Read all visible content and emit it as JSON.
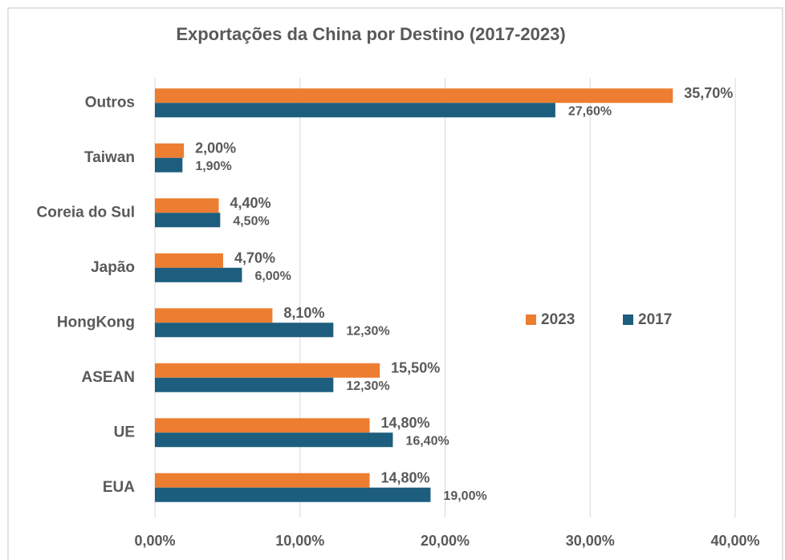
{
  "chart_data": {
    "type": "bar",
    "orientation": "horizontal",
    "title": "Exportações da China por Destino (2017-2023)",
    "categories": [
      "Outros",
      "Taiwan",
      "Coreia do Sul",
      "Japão",
      "HongKong",
      "ASEAN",
      "UE",
      "EUA"
    ],
    "series": [
      {
        "name": "2023",
        "color": "#ED7D31",
        "values": [
          35.7,
          2.0,
          4.4,
          4.7,
          8.1,
          15.5,
          14.8,
          14.8
        ],
        "value_labels": [
          "35,70%",
          "2,00%",
          "4,40%",
          "4,70%",
          "8,10%",
          "15,50%",
          "14,80%",
          "14,80%"
        ]
      },
      {
        "name": "2017",
        "color": "#1D5E7E",
        "values": [
          27.6,
          1.9,
          4.5,
          6.0,
          12.3,
          12.3,
          16.4,
          19.0
        ],
        "value_labels": [
          "27,60%",
          "1,90%",
          "4,50%",
          "6,00%",
          "12,30%",
          "12,30%",
          "16,40%",
          "19,00%"
        ]
      }
    ],
    "xlim": [
      0,
      40
    ],
    "xticks": [
      {
        "value": 0,
        "label": "0,00%"
      },
      {
        "value": 10,
        "label": "10,00%"
      },
      {
        "value": 20,
        "label": "20,00%"
      },
      {
        "value": 30,
        "label": "30,00%"
      },
      {
        "value": 40,
        "label": "40,00%"
      }
    ],
    "grid": true,
    "legend": "right"
  }
}
